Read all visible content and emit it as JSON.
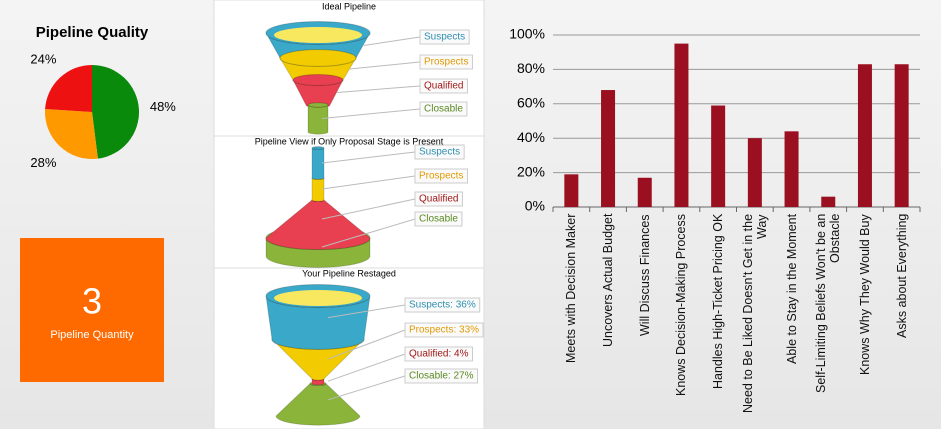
{
  "chart_data": [
    {
      "type": "pie",
      "title": "Pipeline Quality",
      "values": [
        48,
        28,
        24
      ],
      "value_labels": [
        "48%",
        "28%",
        "24%"
      ],
      "colors": [
        "#0a8a0a",
        "#ff9900",
        "#ee1111"
      ]
    },
    {
      "type": "funnel",
      "title": "Ideal Pipeline",
      "categories": [
        "Suspects",
        "Prospects",
        "Qualified",
        "Closable"
      ],
      "colors": [
        "#2f8fb0",
        "#e09a00",
        "#a01818",
        "#5a8a20"
      ]
    },
    {
      "type": "funnel",
      "title": "Pipeline View if Only Proposal Stage is Present",
      "categories": [
        "Suspects",
        "Prospects",
        "Qualified",
        "Closable"
      ],
      "colors": [
        "#2f8fb0",
        "#e09a00",
        "#a01818",
        "#5a8a20"
      ]
    },
    {
      "type": "funnel",
      "title": "Your Pipeline Restaged",
      "values": [
        36,
        33,
        4,
        27
      ],
      "value_labels": [
        "Suspects: 36%",
        "Prospects: 33%",
        "Qualified: 4%",
        "Closable: 27%"
      ],
      "colors": [
        "#2f8fb0",
        "#e09a00",
        "#a01818",
        "#5a8a20"
      ]
    },
    {
      "type": "bar",
      "categories": [
        "Meets with Decision Maker",
        "Uncovers Actual Budget",
        "Will Discuss Finances",
        "Knows Decision-Making Process",
        "Handles High-Ticket Pricing OK",
        "Need to Be Liked Doesn't Get in the Way",
        "Able to Stay in the Moment",
        "Self-Limiting Beliefs Won't be an Obstacle",
        "Knows Why They Would Buy",
        "Asks about Everything"
      ],
      "values": [
        19,
        68,
        17,
        95,
        59,
        40,
        44,
        6,
        83,
        83
      ],
      "color": "#9b1020",
      "ylim": [
        0,
        100
      ],
      "yticks": [
        {
          "value": 0,
          "label": "0%"
        },
        {
          "value": 20,
          "label": "20%"
        },
        {
          "value": 40,
          "label": "40%"
        },
        {
          "value": 60,
          "label": "60%"
        },
        {
          "value": 80,
          "label": "80%"
        },
        {
          "value": 100,
          "label": "100%"
        }
      ],
      "grid": true
    }
  ],
  "kpi": {
    "value": "3",
    "label": "Pipeline Quantity"
  }
}
